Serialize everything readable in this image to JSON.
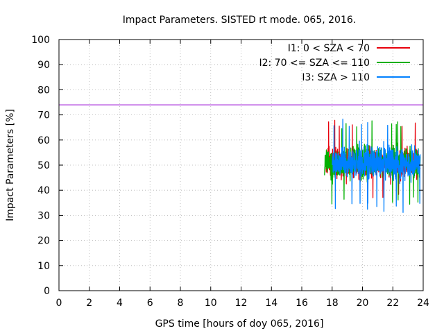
{
  "chart_data": {
    "type": "line",
    "title": "Impact Parameters. SISTED rt mode. 065, 2016.",
    "xlabel": "GPS time [hours of doy 065, 2016]",
    "ylabel": "Impact Parameters [%]",
    "xlim": [
      0,
      24
    ],
    "ylim": [
      0,
      100
    ],
    "xticks": [
      0,
      2,
      4,
      6,
      8,
      10,
      12,
      14,
      16,
      18,
      20,
      22,
      24
    ],
    "yticks": [
      0,
      10,
      20,
      30,
      40,
      50,
      60,
      70,
      80,
      90,
      100
    ],
    "grid": true,
    "legend_position": "top-right",
    "reference_line": {
      "y": 74,
      "color": "#9400d3"
    },
    "series": [
      {
        "name": "I1: 0 < SZA < 70",
        "color": "#e8000b",
        "x_range": [
          17.6,
          23.8
        ],
        "center": 50.5,
        "min": 35,
        "max": 68
      },
      {
        "name": "I2: 70 <= SZA <= 110",
        "color": "#00b000",
        "x_range": [
          17.5,
          23.8
        ],
        "center": 51,
        "min": 34,
        "max": 68
      },
      {
        "name": "I3: SZA > 110",
        "color": "#0080ff",
        "x_range": [
          18.0,
          23.8
        ],
        "center": 51,
        "min": 31,
        "max": 69
      }
    ]
  }
}
